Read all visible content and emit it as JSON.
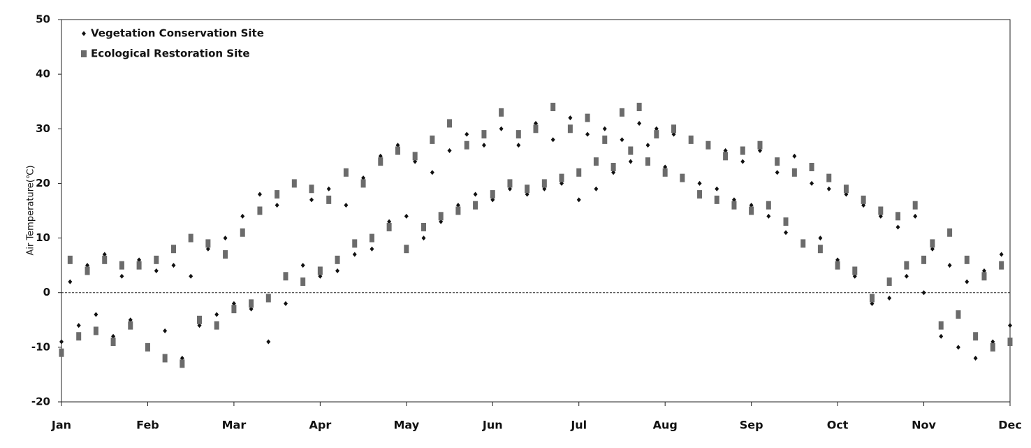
{
  "chart_data": {
    "type": "scatter",
    "y_label": "Air Temperature(℃)",
    "x": [
      0,
      0.1,
      0.2,
      0.3,
      0.4,
      0.5,
      0.6,
      0.7,
      0.8,
      0.9,
      1,
      1.1,
      1.2,
      1.3,
      1.4,
      1.5,
      1.6,
      1.7,
      1.8,
      1.9,
      2,
      2.1,
      2.2,
      2.3,
      2.4,
      2.5,
      2.6,
      2.7,
      2.8,
      2.9,
      3,
      3.1,
      3.2,
      3.3,
      3.4,
      3.5,
      3.6,
      3.7,
      3.8,
      3.9,
      4,
      4.1,
      4.2,
      4.3,
      4.4,
      4.5,
      4.6,
      4.7,
      4.8,
      4.9,
      5,
      5.1,
      5.2,
      5.3,
      5.4,
      5.5,
      5.6,
      5.7,
      5.8,
      5.9,
      6,
      6.1,
      6.2,
      6.3,
      6.4,
      6.5,
      6.6,
      6.7,
      6.8,
      6.9,
      7,
      7.1,
      7.2,
      7.3,
      7.4,
      7.5,
      7.6,
      7.7,
      7.8,
      7.9,
      8,
      8.1,
      8.2,
      8.3,
      8.4,
      8.5,
      8.6,
      8.7,
      8.8,
      8.9,
      9,
      9.1,
      9.2,
      9.3,
      9.4,
      9.5,
      9.6,
      9.7,
      9.8,
      9.9,
      10,
      10.1,
      10.2,
      10.3,
      10.4,
      10.5,
      10.6,
      10.7,
      10.8,
      10.9,
      11
    ],
    "series": [
      {
        "name": "Vegetation Conservation Site",
        "color": "#111111",
        "marker": "diamond",
        "values": [
          -9,
          2,
          -6,
          5,
          -4,
          7,
          -8,
          3,
          -5,
          6,
          -10,
          4,
          -7,
          5,
          -12,
          3,
          -6,
          8,
          -4,
          10,
          -2,
          14,
          -3,
          18,
          -9,
          16,
          -2,
          20,
          5,
          17,
          3,
          19,
          4,
          16,
          7,
          21,
          8,
          25,
          13,
          27,
          14,
          24,
          10,
          22,
          13,
          26,
          16,
          29,
          18,
          27,
          17,
          30,
          19,
          27,
          18,
          31,
          19,
          28,
          20,
          32,
          17,
          29,
          19,
          30,
          22,
          28,
          24,
          31,
          27,
          30,
          23,
          29,
          21,
          28,
          20,
          27,
          19,
          26,
          17,
          24,
          16,
          26,
          14,
          22,
          11,
          25,
          9,
          20,
          10,
          19,
          6,
          18,
          3,
          16,
          -2,
          14,
          -1,
          12,
          3,
          14,
          0,
          8,
          -8,
          5,
          -10,
          2,
          -12,
          4,
          -9,
          7,
          -6
        ]
      },
      {
        "name": "Ecological Restoration Site",
        "color": "#6b6b6b",
        "marker": "rect",
        "values": [
          -11,
          6,
          -8,
          4,
          -7,
          6,
          -9,
          5,
          -6,
          5,
          -10,
          6,
          -12,
          8,
          -13,
          10,
          -5,
          9,
          -6,
          7,
          -3,
          11,
          -2,
          15,
          -1,
          18,
          3,
          20,
          2,
          19,
          4,
          17,
          6,
          22,
          9,
          20,
          10,
          24,
          12,
          26,
          8,
          25,
          12,
          28,
          14,
          31,
          15,
          27,
          16,
          29,
          18,
          33,
          20,
          29,
          19,
          30,
          20,
          34,
          21,
          30,
          22,
          32,
          24,
          28,
          23,
          33,
          26,
          34,
          24,
          29,
          22,
          30,
          21,
          28,
          18,
          27,
          17,
          25,
          16,
          26,
          15,
          27,
          16,
          24,
          13,
          22,
          9,
          23,
          8,
          21,
          5,
          19,
          4,
          17,
          -1,
          15,
          2,
          14,
          5,
          16,
          6,
          9,
          -6,
          11,
          -4,
          6,
          -8,
          3,
          -10,
          5,
          -9
        ]
      }
    ],
    "xlim": [
      0,
      11
    ],
    "xticks": [
      {
        "value": 0,
        "label": "Jan"
      },
      {
        "value": 1,
        "label": "Feb"
      },
      {
        "value": 2,
        "label": "Mar"
      },
      {
        "value": 3,
        "label": "Apr"
      },
      {
        "value": 4,
        "label": "May"
      },
      {
        "value": 5,
        "label": "Jun"
      },
      {
        "value": 6,
        "label": "Jul"
      },
      {
        "value": 7,
        "label": "Aug"
      },
      {
        "value": 8,
        "label": "Sep"
      },
      {
        "value": 9,
        "label": "Oct"
      },
      {
        "value": 10,
        "label": "Nov"
      },
      {
        "value": 11,
        "label": "Dec"
      }
    ],
    "ylim": [
      -20,
      50
    ],
    "yticks": [
      -20,
      -10,
      0,
      10,
      20,
      30,
      40,
      50
    ],
    "reference_line": 0,
    "legend": "top-left"
  }
}
